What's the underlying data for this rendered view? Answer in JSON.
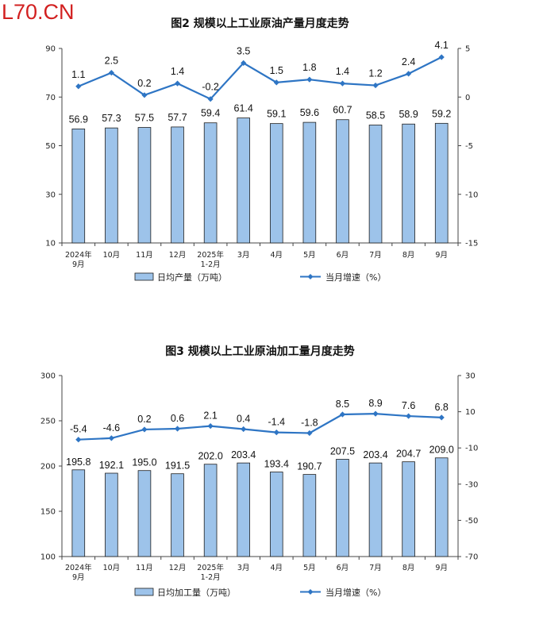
{
  "watermark": "L70.CN",
  "colors": {
    "bar_fill": "#9dc3ea",
    "bar_stroke": "#1f1f1f",
    "line": "#2e75c4",
    "axis": "#444444"
  },
  "chart_data": [
    {
      "type": "bar+line",
      "title": "图2  规模以上工业原油产量月度走势",
      "categories": [
        "2024年\n9月",
        "10月",
        "11月",
        "12月",
        "2025年\n1-2月",
        "3月",
        "4月",
        "5月",
        "6月",
        "7月",
        "8月",
        "9月"
      ],
      "series": [
        {
          "name": "日均产量（万吨）",
          "type": "bar",
          "axis": "left",
          "values": [
            56.9,
            57.3,
            57.5,
            57.7,
            59.4,
            61.4,
            59.1,
            59.6,
            60.7,
            58.5,
            58.9,
            59.2
          ],
          "labels": [
            "56.9",
            "57.3",
            "57.5",
            "57.7",
            "59.4",
            "61.4",
            "59.1",
            "59.6",
            "60.7",
            "58.5",
            "58.9",
            "59.2"
          ]
        },
        {
          "name": "当月增速（%）",
          "type": "line",
          "axis": "right",
          "values": [
            1.1,
            2.5,
            0.2,
            1.4,
            -0.2,
            3.5,
            1.5,
            1.8,
            1.4,
            1.2,
            2.4,
            4.1
          ],
          "labels": [
            "1.1",
            "2.5",
            "0.2",
            "1.4",
            "-0.2",
            "3.5",
            "1.5",
            "1.8",
            "1.4",
            "1.2",
            "2.4",
            "4.1"
          ]
        }
      ],
      "y_left": {
        "min": 10,
        "max": 90,
        "ticks": [
          "90",
          "70",
          "50",
          "30",
          "10"
        ],
        "tick_values": [
          90,
          70,
          50,
          30,
          10
        ]
      },
      "y_right": {
        "min": -15,
        "max": 5,
        "ticks": [
          "5",
          "0",
          "-5",
          "-10",
          "-15"
        ],
        "tick_values": [
          5,
          0,
          -5,
          -10,
          -15
        ]
      },
      "grid": false,
      "legend_position": "bottom"
    },
    {
      "type": "bar+line",
      "title": "图3  规模以上工业原油加工量月度走势",
      "categories": [
        "2024年\n9月",
        "10月",
        "11月",
        "12月",
        "2025年\n1-2月",
        "3月",
        "4月",
        "5月",
        "6月",
        "7月",
        "8月",
        "9月"
      ],
      "series": [
        {
          "name": "日均加工量（万吨）",
          "type": "bar",
          "axis": "left",
          "values": [
            195.8,
            192.1,
            195.0,
            191.5,
            202.0,
            203.4,
            193.4,
            190.7,
            207.5,
            203.4,
            204.7,
            209.0
          ],
          "labels": [
            "195.8",
            "192.1",
            "195.0",
            "191.5",
            "202.0",
            "203.4",
            "193.4",
            "190.7",
            "207.5",
            "203.4",
            "204.7",
            "209.0"
          ]
        },
        {
          "name": "当月增速（%）",
          "type": "line",
          "axis": "right",
          "values": [
            -5.4,
            -4.6,
            0.2,
            0.6,
            2.1,
            0.4,
            -1.4,
            -1.8,
            8.5,
            8.9,
            7.6,
            6.8
          ],
          "labels": [
            "-5.4",
            "-4.6",
            "0.2",
            "0.6",
            "2.1",
            "0.4",
            "-1.4",
            "-1.8",
            "8.5",
            "8.9",
            "7.6",
            "6.8"
          ]
        }
      ],
      "y_left": {
        "min": 100,
        "max": 300,
        "ticks": [
          "300",
          "250",
          "200",
          "150",
          "100"
        ],
        "tick_values": [
          300,
          250,
          200,
          150,
          100
        ]
      },
      "y_right": {
        "min": -70,
        "max": 30,
        "ticks": [
          "30",
          "10",
          "-10",
          "-30",
          "-50",
          "-70"
        ],
        "tick_values": [
          30,
          10,
          -10,
          -30,
          -50,
          -70
        ]
      },
      "grid": false,
      "legend_position": "bottom"
    }
  ]
}
